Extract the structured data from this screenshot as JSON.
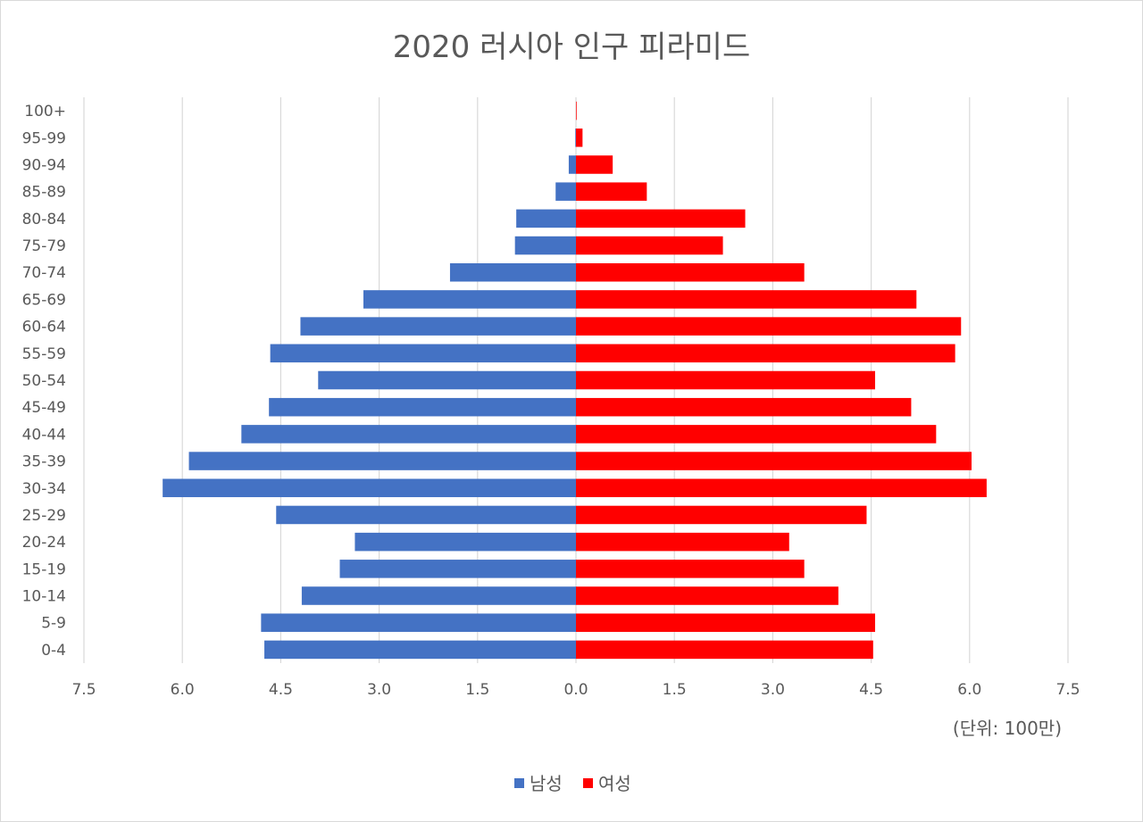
{
  "chart_data": {
    "type": "bar",
    "orientation": "horizontal",
    "title": "2020 러시아 인구 피라미드",
    "unit_label": "(단위: 100만)",
    "categories": [
      "0-4",
      "5-9",
      "10-14",
      "15-19",
      "20-24",
      "25-29",
      "30-34",
      "35-39",
      "40-44",
      "45-49",
      "50-54",
      "55-59",
      "60-64",
      "65-69",
      "70-74",
      "75-79",
      "80-84",
      "85-89",
      "90-94",
      "95-99",
      "100+"
    ],
    "series": [
      {
        "name": "남성",
        "color": "#4472C4",
        "values": [
          4.75,
          4.8,
          4.18,
          3.6,
          3.37,
          4.57,
          6.3,
          5.9,
          5.1,
          4.68,
          3.93,
          4.66,
          4.2,
          3.24,
          1.92,
          0.93,
          0.91,
          0.31,
          0.11,
          0.01,
          0.0
        ]
      },
      {
        "name": "여성",
        "color": "#FF0000",
        "values": [
          4.53,
          4.56,
          4.0,
          3.48,
          3.25,
          4.43,
          6.26,
          6.03,
          5.49,
          5.11,
          4.56,
          5.78,
          5.87,
          5.19,
          3.48,
          2.24,
          2.58,
          1.08,
          0.56,
          0.1,
          0.01
        ]
      }
    ],
    "xticks": [
      "7.5",
      "6.0",
      "4.5",
      "3.0",
      "1.5",
      "0.0",
      "1.5",
      "3.0",
      "4.5",
      "6.0",
      "7.5"
    ],
    "xlim": [
      -7.5,
      7.5
    ],
    "grid": true,
    "legend": "bottom"
  }
}
